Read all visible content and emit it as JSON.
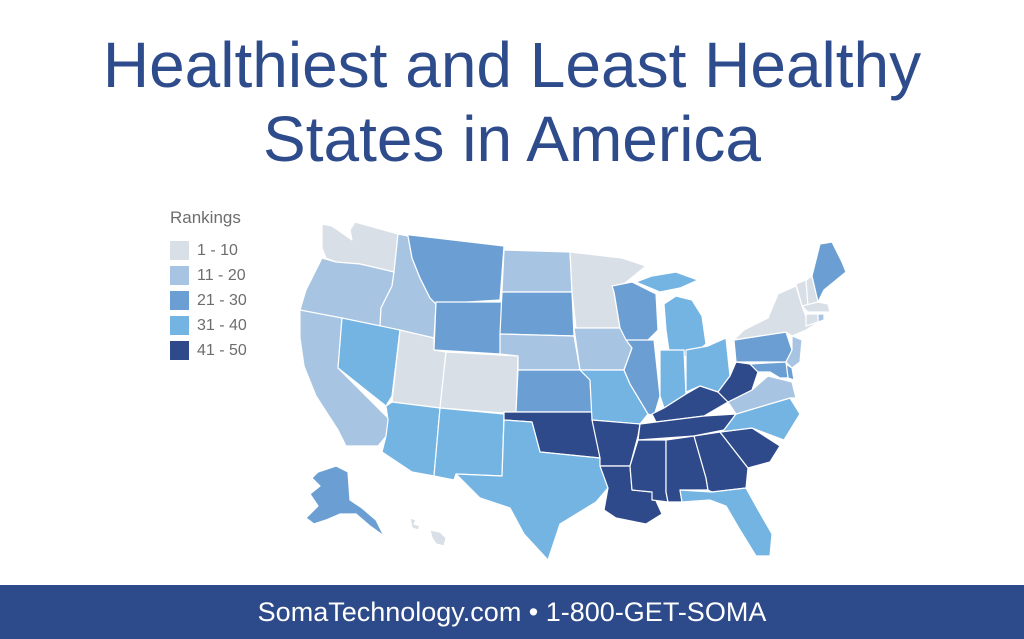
{
  "title": {
    "line1": "Healthiest and Least Healthy",
    "line2": "States in America"
  },
  "legend": {
    "title": "Rankings",
    "items": [
      {
        "label": "1 - 10",
        "color": "#d9dfe6"
      },
      {
        "label": "11 - 20",
        "color": "#a7c4e2"
      },
      {
        "label": "21 - 30",
        "color": "#6b9fd3"
      },
      {
        "label": "31 - 40",
        "color": "#74b4e3"
      },
      {
        "label": "41 - 50",
        "color": "#2e4a8b"
      }
    ]
  },
  "states": {
    "WA": 1,
    "OR": 2,
    "CA": 2,
    "ID": 2,
    "NV": 4,
    "UT": 1,
    "AZ": 4,
    "MT": 3,
    "WY": 3,
    "CO": 1,
    "NM": 4,
    "ND": 2,
    "SD": 3,
    "NE": 2,
    "KS": 3,
    "OK": 5,
    "TX": 4,
    "MN": 1,
    "IA": 2,
    "MO": 4,
    "AR": 5,
    "LA": 5,
    "WI": 3,
    "IL": 3,
    "MI": 4,
    "IN": 4,
    "OH": 4,
    "KY": 5,
    "TN": 5,
    "MS": 5,
    "AL": 5,
    "GA": 5,
    "FL": 4,
    "SC": 5,
    "NC": 4,
    "VA": 2,
    "WV": 5,
    "PA": 3,
    "NY": 1,
    "NJ": 2,
    "DE": 3,
    "MD": 3,
    "VT": 1,
    "NH": 1,
    "ME": 3,
    "MA": 1,
    "CT": 1,
    "RI": 2,
    "AK": 3,
    "HI": 1
  },
  "footer": {
    "text": "SomaTechnology.com • 1-800-GET-SOMA"
  }
}
